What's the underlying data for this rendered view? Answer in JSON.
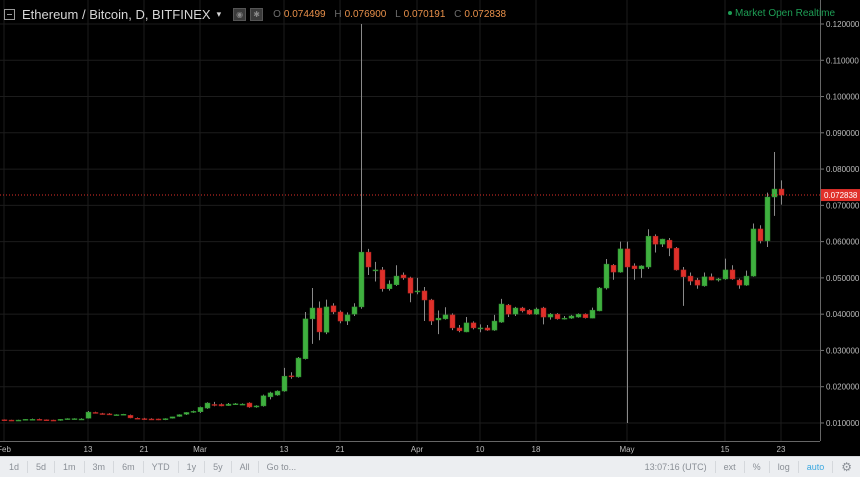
{
  "header": {
    "title": "Ethereum / Bitcoin, D, BITFINEX",
    "caret": "▾",
    "ohlc": [
      {
        "key": "O",
        "value": "0.074499"
      },
      {
        "key": "H",
        "value": "0.076900"
      },
      {
        "key": "L",
        "value": "0.070191"
      },
      {
        "key": "C",
        "value": "0.072838"
      }
    ],
    "market_status": "Market Open",
    "realtime": "Realtime"
  },
  "toolbar": {
    "ranges": [
      "1d",
      "5d",
      "1m",
      "3m",
      "6m",
      "YTD",
      "1y",
      "5y",
      "All"
    ],
    "goto": "Go to...",
    "time": "13:07:16 (UTC)",
    "right": [
      "ext",
      "%",
      "log",
      "auto"
    ],
    "settings_icon": "gear-icon"
  },
  "colors": {
    "up": "#3fb03f",
    "down": "#e0302a",
    "last_price": "#e0302a",
    "market_open": "#1e9e55",
    "background": "#000000",
    "grid": "#1c1c1c"
  },
  "chart_data": {
    "type": "candlestick",
    "symbol": "Ethereum / Bitcoin",
    "interval": "D",
    "exchange": "BITFINEX",
    "ylim": [
      0.0,
      0.125
    ],
    "y_ticks": [
      "0.120000",
      "0.110000",
      "0.100000",
      "0.090000",
      "0.080000",
      "0.070000",
      "0.060000",
      "0.050000",
      "0.040000",
      "0.030000",
      "0.020000",
      "0.010000"
    ],
    "last_price": "0.072838",
    "grid": true,
    "x_ticks": [
      {
        "label": "Feb",
        "date": "02-01"
      },
      {
        "label": "13",
        "date": "02-13"
      },
      {
        "label": "21",
        "date": "02-21"
      },
      {
        "label": "Mar",
        "date": "03-01"
      },
      {
        "label": "13",
        "date": "03-13"
      },
      {
        "label": "21",
        "date": "03-21"
      },
      {
        "label": "Apr",
        "date": "04-01"
      },
      {
        "label": "10",
        "date": "04-10"
      },
      {
        "label": "18",
        "date": "04-18"
      },
      {
        "label": "May",
        "date": "05-01"
      },
      {
        "label": "15",
        "date": "05-15"
      },
      {
        "label": "23",
        "date": "05-23"
      }
    ],
    "candle_fields": [
      "date",
      "open",
      "high",
      "low",
      "close"
    ],
    "candles": [
      [
        "02-01",
        0.0109,
        0.011,
        0.0107,
        0.0108
      ],
      [
        "02-02",
        0.0108,
        0.0109,
        0.0106,
        0.0107
      ],
      [
        "02-03",
        0.0107,
        0.0109,
        0.0106,
        0.0108
      ],
      [
        "02-04",
        0.0108,
        0.0111,
        0.0107,
        0.011
      ],
      [
        "02-05",
        0.011,
        0.0112,
        0.0109,
        0.011
      ],
      [
        "02-06",
        0.011,
        0.0112,
        0.0108,
        0.0109
      ],
      [
        "02-07",
        0.0109,
        0.011,
        0.0107,
        0.0108
      ],
      [
        "02-08",
        0.0108,
        0.0109,
        0.0106,
        0.0107
      ],
      [
        "02-09",
        0.0107,
        0.0111,
        0.0106,
        0.011
      ],
      [
        "02-10",
        0.011,
        0.0113,
        0.0109,
        0.0112
      ],
      [
        "02-11",
        0.0111,
        0.0113,
        0.011,
        0.0112
      ],
      [
        "02-12",
        0.0111,
        0.0113,
        0.011,
        0.0111
      ],
      [
        "02-13",
        0.0113,
        0.0133,
        0.0112,
        0.013
      ],
      [
        "02-14",
        0.0129,
        0.0131,
        0.0126,
        0.0128
      ],
      [
        "02-15",
        0.0126,
        0.0128,
        0.0123,
        0.0124
      ],
      [
        "02-16",
        0.0125,
        0.0127,
        0.0122,
        0.0123
      ],
      [
        "02-17",
        0.0122,
        0.0124,
        0.0121,
        0.0123
      ],
      [
        "02-18",
        0.0123,
        0.0125,
        0.0122,
        0.0124
      ],
      [
        "02-19",
        0.0121,
        0.0123,
        0.0113,
        0.0114
      ],
      [
        "02-20",
        0.0113,
        0.0115,
        0.011,
        0.0111
      ],
      [
        "02-21",
        0.0112,
        0.0114,
        0.0109,
        0.011
      ],
      [
        "02-22",
        0.0111,
        0.0113,
        0.0109,
        0.011
      ],
      [
        "02-23",
        0.0111,
        0.0112,
        0.0108,
        0.0109
      ],
      [
        "02-24",
        0.0109,
        0.0113,
        0.0108,
        0.0112
      ],
      [
        "02-25",
        0.0113,
        0.0118,
        0.0112,
        0.0117
      ],
      [
        "02-26",
        0.0118,
        0.0124,
        0.0117,
        0.0123
      ],
      [
        "02-27",
        0.0124,
        0.013,
        0.0122,
        0.0129
      ],
      [
        "02-28",
        0.013,
        0.0134,
        0.0128,
        0.0132
      ],
      [
        "03-01",
        0.0131,
        0.0145,
        0.0128,
        0.0143
      ],
      [
        "03-02",
        0.0141,
        0.0157,
        0.0139,
        0.0155
      ],
      [
        "03-03",
        0.0151,
        0.0158,
        0.0146,
        0.015
      ],
      [
        "03-04",
        0.0151,
        0.0154,
        0.0146,
        0.0147
      ],
      [
        "03-05",
        0.0148,
        0.0155,
        0.0147,
        0.0152
      ],
      [
        "03-06",
        0.0152,
        0.0155,
        0.015,
        0.0153
      ],
      [
        "03-07",
        0.0152,
        0.0154,
        0.015,
        0.0152
      ],
      [
        "03-08",
        0.0155,
        0.0157,
        0.0142,
        0.0144
      ],
      [
        "03-09",
        0.0144,
        0.0149,
        0.0142,
        0.0147
      ],
      [
        "03-10",
        0.0147,
        0.0178,
        0.0145,
        0.0175
      ],
      [
        "03-11",
        0.0172,
        0.0186,
        0.0165,
        0.0183
      ],
      [
        "03-12",
        0.0177,
        0.019,
        0.0175,
        0.0188
      ],
      [
        "03-13",
        0.0188,
        0.0252,
        0.0186,
        0.0229
      ],
      [
        "03-14",
        0.023,
        0.024,
        0.0222,
        0.0228
      ],
      [
        "03-15",
        0.0227,
        0.0282,
        0.0225,
        0.0279
      ],
      [
        "03-16",
        0.0277,
        0.0406,
        0.0275,
        0.0387
      ],
      [
        "03-17",
        0.0387,
        0.0472,
        0.0318,
        0.0417
      ],
      [
        "03-18",
        0.0417,
        0.0435,
        0.0328,
        0.0351
      ],
      [
        "03-19",
        0.035,
        0.044,
        0.0345,
        0.042
      ],
      [
        "03-20",
        0.0423,
        0.043,
        0.04,
        0.0406
      ],
      [
        "03-21",
        0.0406,
        0.041,
        0.0375,
        0.0381
      ],
      [
        "03-22",
        0.0381,
        0.0405,
        0.037,
        0.0398
      ],
      [
        "03-23",
        0.04,
        0.043,
        0.0395,
        0.042
      ],
      [
        "03-24",
        0.042,
        0.12,
        0.0415,
        0.0571
      ],
      [
        "03-25",
        0.0571,
        0.058,
        0.0508,
        0.053
      ],
      [
        "03-26",
        0.0521,
        0.0544,
        0.049,
        0.0522
      ],
      [
        "03-27",
        0.0522,
        0.053,
        0.0462,
        0.047
      ],
      [
        "03-28",
        0.047,
        0.0493,
        0.0465,
        0.0483
      ],
      [
        "03-29",
        0.0481,
        0.0535,
        0.0478,
        0.0505
      ],
      [
        "03-30",
        0.0508,
        0.0515,
        0.0495,
        0.05
      ],
      [
        "03-31",
        0.05,
        0.0503,
        0.0433,
        0.0458
      ],
      [
        "04-01",
        0.0463,
        0.05,
        0.0455,
        0.0464
      ],
      [
        "04-02",
        0.0464,
        0.0475,
        0.0381,
        0.0439
      ],
      [
        "04-03",
        0.0439,
        0.0442,
        0.037,
        0.0381
      ],
      [
        "04-04",
        0.0384,
        0.041,
        0.0345,
        0.0389
      ],
      [
        "04-05",
        0.0387,
        0.0419,
        0.0385,
        0.0398
      ],
      [
        "04-06",
        0.0398,
        0.0402,
        0.0356,
        0.0362
      ],
      [
        "04-07",
        0.0362,
        0.037,
        0.035,
        0.0354
      ],
      [
        "04-08",
        0.0351,
        0.0392,
        0.035,
        0.0376
      ],
      [
        "04-09",
        0.0376,
        0.038,
        0.0358,
        0.0362
      ],
      [
        "04-10",
        0.0361,
        0.0372,
        0.035,
        0.0362
      ],
      [
        "04-11",
        0.0362,
        0.037,
        0.0354,
        0.0356
      ],
      [
        "04-12",
        0.0356,
        0.0398,
        0.0354,
        0.0381
      ],
      [
        "04-13",
        0.0378,
        0.0442,
        0.0376,
        0.0428
      ],
      [
        "04-14",
        0.0425,
        0.0428,
        0.0392,
        0.04
      ],
      [
        "04-15",
        0.04,
        0.042,
        0.0395,
        0.0417
      ],
      [
        "04-16",
        0.0417,
        0.042,
        0.0405,
        0.0409
      ],
      [
        "04-17",
        0.0411,
        0.0414,
        0.0398,
        0.04
      ],
      [
        "04-18",
        0.04,
        0.0418,
        0.0398,
        0.0414
      ],
      [
        "04-19",
        0.0417,
        0.042,
        0.0372,
        0.0392
      ],
      [
        "04-20",
        0.0392,
        0.0403,
        0.0385,
        0.04
      ],
      [
        "04-21",
        0.04,
        0.0403,
        0.0385,
        0.0387
      ],
      [
        "04-22",
        0.0387,
        0.0395,
        0.0385,
        0.0389
      ],
      [
        "04-23",
        0.0389,
        0.0398,
        0.0387,
        0.0395
      ],
      [
        "04-24",
        0.0392,
        0.0402,
        0.039,
        0.04
      ],
      [
        "04-25",
        0.04,
        0.0402,
        0.0388,
        0.039
      ],
      [
        "04-26",
        0.0389,
        0.0418,
        0.0388,
        0.0411
      ],
      [
        "04-27",
        0.0409,
        0.0475,
        0.0408,
        0.0472
      ],
      [
        "04-28",
        0.0472,
        0.0552,
        0.0468,
        0.0538
      ],
      [
        "04-29",
        0.0535,
        0.0538,
        0.0495,
        0.0516
      ],
      [
        "04-30",
        0.0516,
        0.06,
        0.0514,
        0.058
      ],
      [
        "05-01",
        0.058,
        0.06,
        0.01,
        0.053
      ],
      [
        "05-02",
        0.0533,
        0.054,
        0.0495,
        0.0525
      ],
      [
        "05-03",
        0.0525,
        0.0535,
        0.05,
        0.0533
      ],
      [
        "05-04",
        0.053,
        0.0634,
        0.0525,
        0.0615
      ],
      [
        "05-05",
        0.0615,
        0.062,
        0.057,
        0.0593
      ],
      [
        "05-06",
        0.0593,
        0.0608,
        0.0585,
        0.0607
      ],
      [
        "05-07",
        0.0604,
        0.061,
        0.056,
        0.0582
      ],
      [
        "05-08",
        0.0582,
        0.0585,
        0.052,
        0.0522
      ],
      [
        "05-09",
        0.0522,
        0.053,
        0.0423,
        0.0503
      ],
      [
        "05-10",
        0.0505,
        0.0515,
        0.048,
        0.0491
      ],
      [
        "05-11",
        0.0494,
        0.05,
        0.047,
        0.048
      ],
      [
        "05-12",
        0.0478,
        0.0515,
        0.0476,
        0.0503
      ],
      [
        "05-13",
        0.0503,
        0.0512,
        0.0493,
        0.0494
      ],
      [
        "05-14",
        0.0494,
        0.05,
        0.049,
        0.0497
      ],
      [
        "05-15",
        0.0497,
        0.0553,
        0.0495,
        0.0522
      ],
      [
        "05-16",
        0.0522,
        0.0535,
        0.0495,
        0.0497
      ],
      [
        "05-17",
        0.0494,
        0.0498,
        0.047,
        0.048
      ],
      [
        "05-18",
        0.048,
        0.052,
        0.0478,
        0.0505
      ],
      [
        "05-19",
        0.0505,
        0.065,
        0.0503,
        0.0635
      ],
      [
        "05-20",
        0.0635,
        0.0645,
        0.0595,
        0.0602
      ],
      [
        "05-21",
        0.0602,
        0.0735,
        0.0585,
        0.0723
      ],
      [
        "05-22",
        0.0723,
        0.0847,
        0.0671,
        0.0745
      ],
      [
        "05-23",
        0.074499,
        0.0769,
        0.070191,
        0.072838
      ]
    ]
  }
}
